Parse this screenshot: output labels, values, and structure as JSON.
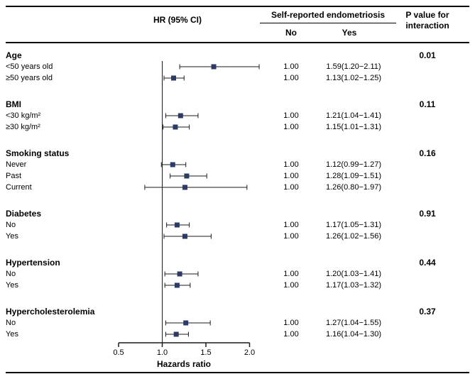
{
  "chart_data": {
    "type": "forest",
    "title": "",
    "xlabel": "Hazards ratio",
    "xlim": [
      0.5,
      2.0
    ],
    "x_ticks": [
      "0.5",
      "1.0",
      "1.5",
      "2.0"
    ],
    "ref_line": 1.0,
    "marker_color": "#2b3a66",
    "line_color": "#1a1a1a",
    "columns": {
      "hr_header": "HR (95% CI)",
      "group_header": "Self-reported endometriosis",
      "no_header": "No",
      "yes_header": "Yes",
      "p_header_line1": "P value for",
      "p_header_line2": "interaction"
    },
    "groups": [
      {
        "label": "Age",
        "p_value": "0.01",
        "rows": [
          {
            "label": "<50 years old",
            "no": "1.00",
            "yes": "1.59(1.20−2.11)",
            "hr": 1.59,
            "lo": 1.2,
            "hi": 2.11
          },
          {
            "label": "≥50 years old",
            "no": "1.00",
            "yes": "1.13(1.02−1.25)",
            "hr": 1.13,
            "lo": 1.02,
            "hi": 1.25
          }
        ]
      },
      {
        "label": "BMI",
        "p_value": "0.11",
        "rows": [
          {
            "label": "<30 kg/m²",
            "no": "1.00",
            "yes": "1.21(1.04−1.41)",
            "hr": 1.21,
            "lo": 1.04,
            "hi": 1.41
          },
          {
            "label": "≥30 kg/m²",
            "no": "1.00",
            "yes": "1.15(1.01−1.31)",
            "hr": 1.15,
            "lo": 1.01,
            "hi": 1.31
          }
        ]
      },
      {
        "label": "Smoking status",
        "p_value": "0.16",
        "rows": [
          {
            "label": "Never",
            "no": "1.00",
            "yes": "1.12(0.99−1.27)",
            "hr": 1.12,
            "lo": 0.99,
            "hi": 1.27
          },
          {
            "label": "Past",
            "no": "1.00",
            "yes": "1.28(1.09−1.51)",
            "hr": 1.28,
            "lo": 1.09,
            "hi": 1.51
          },
          {
            "label": "Current",
            "no": "1.00",
            "yes": "1.26(0.80−1.97)",
            "hr": 1.26,
            "lo": 0.8,
            "hi": 1.97
          }
        ]
      },
      {
        "label": "Diabetes",
        "p_value": "0.91",
        "rows": [
          {
            "label": "No",
            "no": "1.00",
            "yes": "1.17(1.05−1.31)",
            "hr": 1.17,
            "lo": 1.05,
            "hi": 1.31
          },
          {
            "label": "Yes",
            "no": "1.00",
            "yes": "1.26(1.02−1.56)",
            "hr": 1.26,
            "lo": 1.02,
            "hi": 1.56
          }
        ]
      },
      {
        "label": "Hypertension",
        "p_value": "0.44",
        "rows": [
          {
            "label": "No",
            "no": "1.00",
            "yes": "1.20(1.03−1.41)",
            "hr": 1.2,
            "lo": 1.03,
            "hi": 1.41
          },
          {
            "label": "Yes",
            "no": "1.00",
            "yes": "1.17(1.03−1.32)",
            "hr": 1.17,
            "lo": 1.03,
            "hi": 1.32
          }
        ]
      },
      {
        "label": "Hypercholesterolemia",
        "p_value": "0.37",
        "rows": [
          {
            "label": "No",
            "no": "1.00",
            "yes": "1.27(1.04−1.55)",
            "hr": 1.27,
            "lo": 1.04,
            "hi": 1.55
          },
          {
            "label": "Yes",
            "no": "1.00",
            "yes": "1.16(1.04−1.30)",
            "hr": 1.16,
            "lo": 1.04,
            "hi": 1.3
          }
        ]
      }
    ]
  }
}
